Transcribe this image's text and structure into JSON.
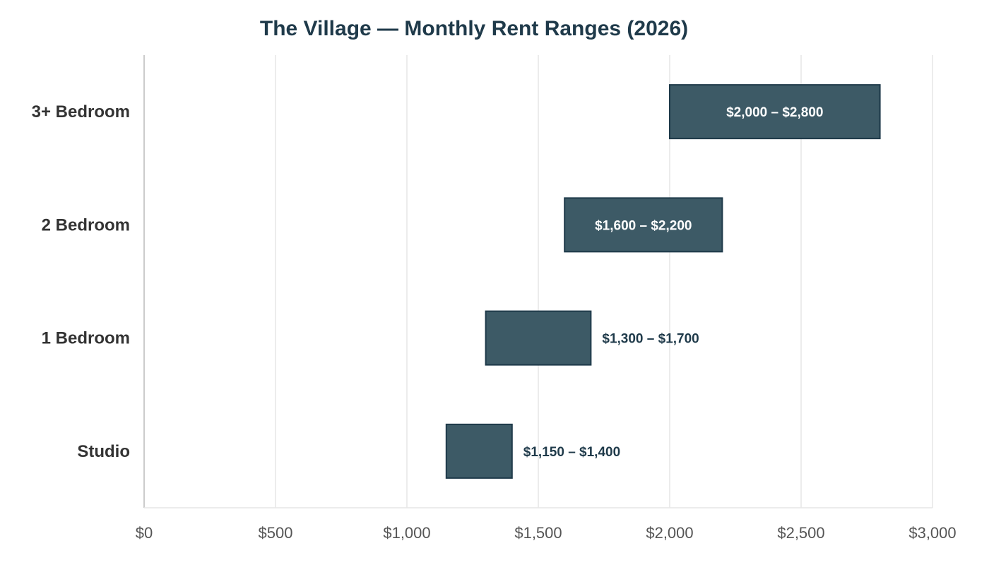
{
  "chart_data": {
    "type": "bar",
    "orientation": "horizontal",
    "title": "The Village — Monthly Rent Ranges (2026)",
    "xlabel": "",
    "ylabel": "",
    "xlim": [
      0,
      3000
    ],
    "x_ticks": [
      0,
      500,
      1000,
      1500,
      2000,
      2500,
      3000
    ],
    "x_tick_labels": [
      "$0",
      "$500",
      "$1,000",
      "$1,500",
      "$2,000",
      "$2,500",
      "$3,000"
    ],
    "grid": "vertical",
    "legend": "none",
    "bar_color": "#3d5a66",
    "bar_edge_color": "#1f3a4a",
    "categories": [
      "3+ Bedroom",
      "2 Bedroom",
      "1 Bedroom",
      "Studio"
    ],
    "ranges": [
      {
        "category": "3+ Bedroom",
        "low": 2000,
        "high": 2800,
        "label": "$2,000 – $2,800"
      },
      {
        "category": "2 Bedroom",
        "low": 1600,
        "high": 2200,
        "label": "$1,600 – $2,200"
      },
      {
        "category": "1 Bedroom",
        "low": 1300,
        "high": 1700,
        "label": "$1,300 – $1,700"
      },
      {
        "category": "Studio",
        "low": 1150,
        "high": 1400,
        "label": "$1,150 – $1,400"
      }
    ]
  }
}
